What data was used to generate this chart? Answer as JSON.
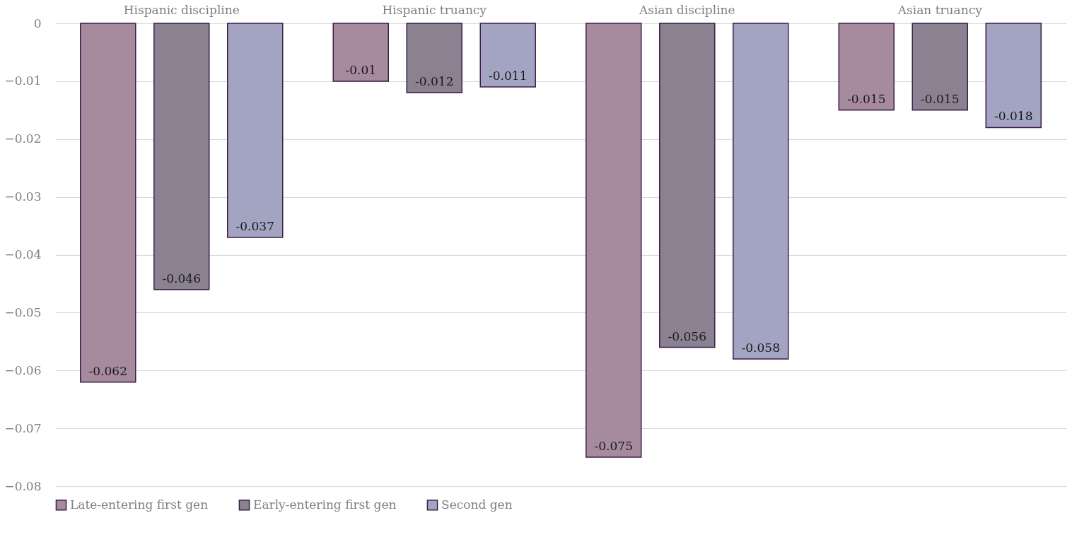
{
  "chart_data": {
    "type": "bar",
    "categories": [
      "Hispanic discipline",
      "Hispanic truancy",
      "Asian discipline",
      "Asian truancy"
    ],
    "series": [
      {
        "name": "Late-entering first gen",
        "color": "#a68a9e",
        "values": [
          -0.062,
          -0.01,
          -0.075,
          -0.015
        ]
      },
      {
        "name": "Early-entering first gen",
        "color": "#8a8290",
        "values": [
          -0.046,
          -0.012,
          -0.056,
          -0.015
        ]
      },
      {
        "name": "Second gen",
        "color": "#a3a3c2",
        "values": [
          -0.037,
          -0.011,
          -0.058,
          -0.018
        ]
      }
    ],
    "ylim": [
      -0.08,
      0
    ],
    "yticks": [
      0,
      -0.01,
      -0.02,
      -0.03,
      -0.04,
      -0.05,
      -0.06,
      -0.07,
      -0.08
    ],
    "grid": "y",
    "legend": "bottom",
    "data_labels": true
  }
}
